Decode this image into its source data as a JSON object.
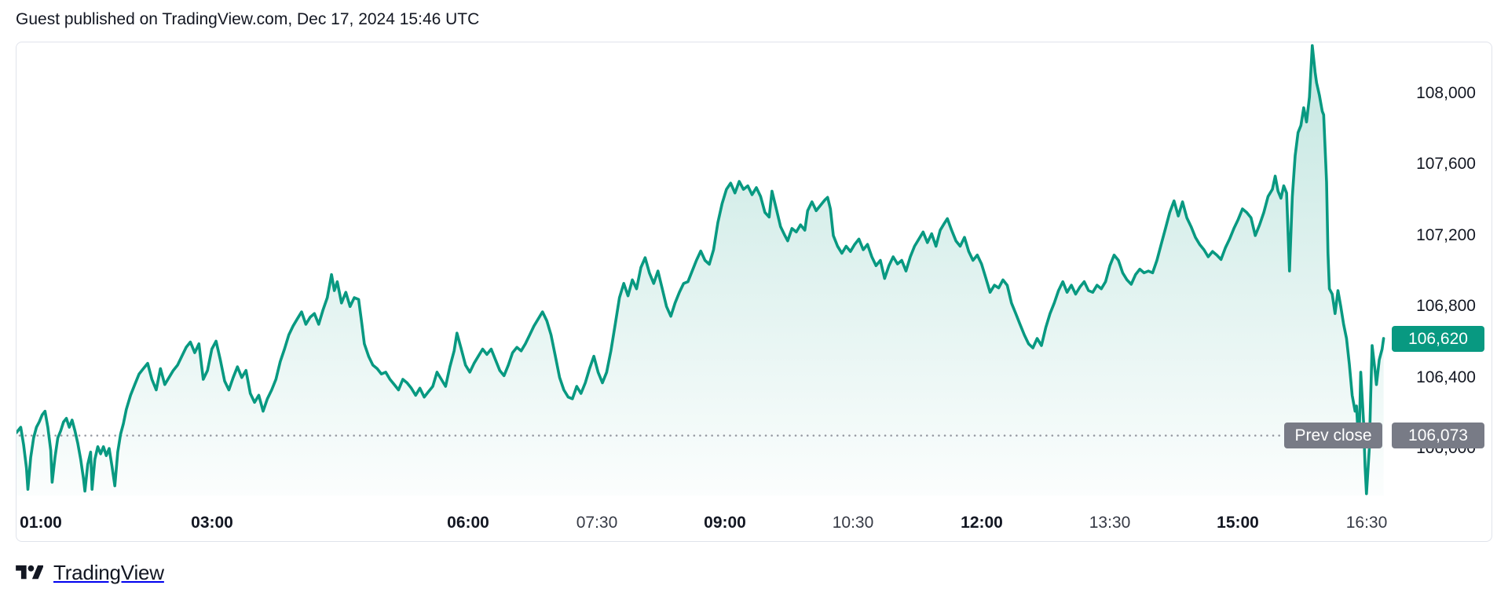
{
  "header": {
    "attribution": "Guest published on TradingView.com, Dec 17, 2024 15:46 UTC"
  },
  "chart": {
    "current_price_label": "106,620",
    "prev_close_label": "Prev close",
    "prev_close_value_label": "106,073"
  },
  "footer": {
    "brand": "TradingView",
    "logo_icon": "tradingview-logo"
  },
  "colors": {
    "accent": "#089981",
    "badge_gray": "#787b86",
    "dotted_line": "#9598a1",
    "axis_text": "#131722",
    "axis_text_regular": "#363a45",
    "border": "#e0e3eb"
  },
  "chart_data": {
    "type": "area",
    "title": "",
    "xlabel": "",
    "ylabel": "",
    "grid": false,
    "legend": "none",
    "x_unit": "minutes_since_midnight",
    "x_range_minutes": [
      43,
      1005
    ],
    "ylim": [
      105735,
      108288
    ],
    "current_price": 106620,
    "prev_close": 106073,
    "y_ticks": [
      {
        "price": 108000,
        "label": "108,000"
      },
      {
        "price": 107600,
        "label": "107,600"
      },
      {
        "price": 107200,
        "label": "107,200"
      },
      {
        "price": 106800,
        "label": "106,800"
      },
      {
        "price": 106400,
        "label": "106,400"
      },
      {
        "price": 106000,
        "label": "106,000"
      }
    ],
    "x_ticks": [
      {
        "minutes": 60,
        "label": "01:00",
        "bold": true
      },
      {
        "minutes": 180,
        "label": "03:00",
        "bold": true
      },
      {
        "minutes": 360,
        "label": "06:00",
        "bold": true
      },
      {
        "minutes": 450,
        "label": "07:30",
        "bold": false
      },
      {
        "minutes": 540,
        "label": "09:00",
        "bold": true
      },
      {
        "minutes": 630,
        "label": "10:30",
        "bold": false
      },
      {
        "minutes": 720,
        "label": "12:00",
        "bold": true
      },
      {
        "minutes": 810,
        "label": "13:30",
        "bold": false
      },
      {
        "minutes": 900,
        "label": "15:00",
        "bold": true
      },
      {
        "minutes": 990,
        "label": "16:30",
        "bold": false
      }
    ],
    "points": [
      [
        43,
        106090
      ],
      [
        46,
        106120
      ],
      [
        48,
        106020
      ],
      [
        50,
        105890
      ],
      [
        51,
        105770
      ],
      [
        53,
        105950
      ],
      [
        55,
        106060
      ],
      [
        57,
        106120
      ],
      [
        59,
        106150
      ],
      [
        61,
        106190
      ],
      [
        63,
        106210
      ],
      [
        65,
        106120
      ],
      [
        67,
        105990
      ],
      [
        68,
        105810
      ],
      [
        70,
        105950
      ],
      [
        72,
        106060
      ],
      [
        74,
        106100
      ],
      [
        76,
        106150
      ],
      [
        78,
        106170
      ],
      [
        80,
        106120
      ],
      [
        82,
        106160
      ],
      [
        84,
        106100
      ],
      [
        86,
        106030
      ],
      [
        88,
        105940
      ],
      [
        90,
        105830
      ],
      [
        91,
        105760
      ],
      [
        93,
        105910
      ],
      [
        95,
        105980
      ],
      [
        96,
        105770
      ],
      [
        98,
        105940
      ],
      [
        100,
        106010
      ],
      [
        102,
        105970
      ],
      [
        104,
        106010
      ],
      [
        106,
        105960
      ],
      [
        108,
        106000
      ],
      [
        110,
        105900
      ],
      [
        112,
        105790
      ],
      [
        114,
        105980
      ],
      [
        116,
        106080
      ],
      [
        118,
        106140
      ],
      [
        120,
        106220
      ],
      [
        123,
        106300
      ],
      [
        126,
        106360
      ],
      [
        129,
        106420
      ],
      [
        132,
        106450
      ],
      [
        135,
        106480
      ],
      [
        138,
        106390
      ],
      [
        141,
        106330
      ],
      [
        144,
        106450
      ],
      [
        147,
        106360
      ],
      [
        150,
        106400
      ],
      [
        153,
        106440
      ],
      [
        156,
        106470
      ],
      [
        159,
        106520
      ],
      [
        162,
        106570
      ],
      [
        165,
        106600
      ],
      [
        168,
        106540
      ],
      [
        171,
        106590
      ],
      [
        174,
        106390
      ],
      [
        177,
        106440
      ],
      [
        180,
        106560
      ],
      [
        183,
        106605
      ],
      [
        186,
        106500
      ],
      [
        189,
        106380
      ],
      [
        192,
        106330
      ],
      [
        195,
        106400
      ],
      [
        198,
        106460
      ],
      [
        201,
        106400
      ],
      [
        204,
        106440
      ],
      [
        207,
        106310
      ],
      [
        210,
        106260
      ],
      [
        213,
        106300
      ],
      [
        216,
        106210
      ],
      [
        219,
        106280
      ],
      [
        222,
        106330
      ],
      [
        225,
        106390
      ],
      [
        228,
        106490
      ],
      [
        231,
        106560
      ],
      [
        234,
        106640
      ],
      [
        237,
        106690
      ],
      [
        240,
        106730
      ],
      [
        243,
        106770
      ],
      [
        246,
        106700
      ],
      [
        249,
        106740
      ],
      [
        252,
        106760
      ],
      [
        255,
        106700
      ],
      [
        258,
        106780
      ],
      [
        261,
        106850
      ],
      [
        264,
        106980
      ],
      [
        266,
        106890
      ],
      [
        268,
        106940
      ],
      [
        271,
        106820
      ],
      [
        274,
        106880
      ],
      [
        277,
        106800
      ],
      [
        280,
        106850
      ],
      [
        283,
        106840
      ],
      [
        285,
        106720
      ],
      [
        287,
        106590
      ],
      [
        290,
        106520
      ],
      [
        293,
        106470
      ],
      [
        296,
        106450
      ],
      [
        299,
        106420
      ],
      [
        302,
        106430
      ],
      [
        305,
        106390
      ],
      [
        308,
        106360
      ],
      [
        311,
        106330
      ],
      [
        314,
        106390
      ],
      [
        317,
        106370
      ],
      [
        320,
        106340
      ],
      [
        323,
        106300
      ],
      [
        326,
        106340
      ],
      [
        329,
        106290
      ],
      [
        332,
        106320
      ],
      [
        335,
        106350
      ],
      [
        338,
        106430
      ],
      [
        341,
        106390
      ],
      [
        344,
        106350
      ],
      [
        347,
        106460
      ],
      [
        350,
        106550
      ],
      [
        352,
        106650
      ],
      [
        355,
        106560
      ],
      [
        358,
        106470
      ],
      [
        361,
        106430
      ],
      [
        364,
        106480
      ],
      [
        367,
        106520
      ],
      [
        370,
        106560
      ],
      [
        373,
        106530
      ],
      [
        376,
        106560
      ],
      [
        379,
        106500
      ],
      [
        382,
        106440
      ],
      [
        385,
        106410
      ],
      [
        388,
        106470
      ],
      [
        391,
        106540
      ],
      [
        394,
        106570
      ],
      [
        397,
        106550
      ],
      [
        400,
        106590
      ],
      [
        403,
        106640
      ],
      [
        406,
        106690
      ],
      [
        409,
        106730
      ],
      [
        412,
        106770
      ],
      [
        415,
        106720
      ],
      [
        418,
        106640
      ],
      [
        421,
        106520
      ],
      [
        424,
        106400
      ],
      [
        427,
        106330
      ],
      [
        430,
        106290
      ],
      [
        433,
        106280
      ],
      [
        436,
        106350
      ],
      [
        439,
        106310
      ],
      [
        442,
        106370
      ],
      [
        445,
        106450
      ],
      [
        448,
        106520
      ],
      [
        451,
        106430
      ],
      [
        454,
        106370
      ],
      [
        457,
        106430
      ],
      [
        460,
        106550
      ],
      [
        463,
        106700
      ],
      [
        466,
        106850
      ],
      [
        469,
        106930
      ],
      [
        472,
        106860
      ],
      [
        475,
        106950
      ],
      [
        478,
        106900
      ],
      [
        481,
        107020
      ],
      [
        484,
        107075
      ],
      [
        487,
        106990
      ],
      [
        490,
        106930
      ],
      [
        493,
        107000
      ],
      [
        496,
        106900
      ],
      [
        499,
        106800
      ],
      [
        502,
        106745
      ],
      [
        505,
        106820
      ],
      [
        508,
        106880
      ],
      [
        511,
        106930
      ],
      [
        514,
        106940
      ],
      [
        517,
        107000
      ],
      [
        520,
        107060
      ],
      [
        523,
        107113
      ],
      [
        526,
        107060
      ],
      [
        529,
        107038
      ],
      [
        532,
        107120
      ],
      [
        535,
        107273
      ],
      [
        538,
        107380
      ],
      [
        541,
        107460
      ],
      [
        544,
        107495
      ],
      [
        547,
        107440
      ],
      [
        550,
        107505
      ],
      [
        553,
        107460
      ],
      [
        556,
        107480
      ],
      [
        559,
        107430
      ],
      [
        562,
        107470
      ],
      [
        565,
        107420
      ],
      [
        568,
        107330
      ],
      [
        571,
        107304
      ],
      [
        573,
        107450
      ],
      [
        576,
        107350
      ],
      [
        579,
        107250
      ],
      [
        582,
        107200
      ],
      [
        584,
        107170
      ],
      [
        587,
        107240
      ],
      [
        590,
        107220
      ],
      [
        593,
        107260
      ],
      [
        596,
        107230
      ],
      [
        598,
        107340
      ],
      [
        601,
        107390
      ],
      [
        604,
        107340
      ],
      [
        607,
        107370
      ],
      [
        610,
        107400
      ],
      [
        612,
        107415
      ],
      [
        614,
        107350
      ],
      [
        616,
        107200
      ],
      [
        619,
        107140
      ],
      [
        622,
        107100
      ],
      [
        625,
        107140
      ],
      [
        628,
        107110
      ],
      [
        631,
        107150
      ],
      [
        634,
        107180
      ],
      [
        637,
        107120
      ],
      [
        640,
        107150
      ],
      [
        643,
        107080
      ],
      [
        646,
        107030
      ],
      [
        649,
        107060
      ],
      [
        652,
        106958
      ],
      [
        655,
        107030
      ],
      [
        658,
        107080
      ],
      [
        661,
        107040
      ],
      [
        664,
        107060
      ],
      [
        667,
        107000
      ],
      [
        670,
        107080
      ],
      [
        673,
        107140
      ],
      [
        676,
        107180
      ],
      [
        679,
        107220
      ],
      [
        682,
        107160
      ],
      [
        685,
        107210
      ],
      [
        688,
        107140
      ],
      [
        691,
        107230
      ],
      [
        694,
        107270
      ],
      [
        696,
        107295
      ],
      [
        699,
        107230
      ],
      [
        702,
        107170
      ],
      [
        705,
        107140
      ],
      [
        708,
        107190
      ],
      [
        711,
        107110
      ],
      [
        714,
        107060
      ],
      [
        717,
        107090
      ],
      [
        720,
        107040
      ],
      [
        723,
        106960
      ],
      [
        726,
        106880
      ],
      [
        729,
        106920
      ],
      [
        732,
        106905
      ],
      [
        735,
        106950
      ],
      [
        738,
        106920
      ],
      [
        741,
        106820
      ],
      [
        744,
        106760
      ],
      [
        747,
        106700
      ],
      [
        750,
        106640
      ],
      [
        753,
        106590
      ],
      [
        756,
        106567
      ],
      [
        759,
        106620
      ],
      [
        762,
        106580
      ],
      [
        765,
        106680
      ],
      [
        768,
        106760
      ],
      [
        771,
        106820
      ],
      [
        774,
        106890
      ],
      [
        777,
        106940
      ],
      [
        780,
        106880
      ],
      [
        783,
        106920
      ],
      [
        786,
        106870
      ],
      [
        789,
        106910
      ],
      [
        792,
        106940
      ],
      [
        795,
        106890
      ],
      [
        798,
        106880
      ],
      [
        801,
        106920
      ],
      [
        804,
        106900
      ],
      [
        807,
        106940
      ],
      [
        810,
        107030
      ],
      [
        813,
        107090
      ],
      [
        816,
        107060
      ],
      [
        819,
        106990
      ],
      [
        822,
        106950
      ],
      [
        825,
        106925
      ],
      [
        828,
        106980
      ],
      [
        831,
        107010
      ],
      [
        834,
        106990
      ],
      [
        837,
        107000
      ],
      [
        840,
        106990
      ],
      [
        843,
        107060
      ],
      [
        846,
        107150
      ],
      [
        849,
        107240
      ],
      [
        852,
        107330
      ],
      [
        855,
        107395
      ],
      [
        858,
        107310
      ],
      [
        861,
        107390
      ],
      [
        864,
        107300
      ],
      [
        867,
        107250
      ],
      [
        870,
        107190
      ],
      [
        873,
        107150
      ],
      [
        876,
        107120
      ],
      [
        879,
        107080
      ],
      [
        882,
        107110
      ],
      [
        885,
        107090
      ],
      [
        888,
        107065
      ],
      [
        891,
        107130
      ],
      [
        894,
        107180
      ],
      [
        897,
        107240
      ],
      [
        900,
        107290
      ],
      [
        903,
        107350
      ],
      [
        906,
        107330
      ],
      [
        909,
        107300
      ],
      [
        912,
        107200
      ],
      [
        915,
        107260
      ],
      [
        918,
        107330
      ],
      [
        921,
        107420
      ],
      [
        924,
        107460
      ],
      [
        926,
        107535
      ],
      [
        928,
        107450
      ],
      [
        930,
        107410
      ],
      [
        932,
        107480
      ],
      [
        934,
        107440
      ],
      [
        936,
        107000
      ],
      [
        938,
        107420
      ],
      [
        940,
        107650
      ],
      [
        942,
        107780
      ],
      [
        944,
        107820
      ],
      [
        946,
        107920
      ],
      [
        948,
        107840
      ],
      [
        950,
        107980
      ],
      [
        952,
        108270
      ],
      [
        954,
        108120
      ],
      [
        955,
        108060
      ],
      [
        957,
        107990
      ],
      [
        959,
        107900
      ],
      [
        960,
        107880
      ],
      [
        962,
        107500
      ],
      [
        963,
        107100
      ],
      [
        964,
        106900
      ],
      [
        966,
        106870
      ],
      [
        968,
        106760
      ],
      [
        970,
        106890
      ],
      [
        972,
        106800
      ],
      [
        974,
        106700
      ],
      [
        976,
        106620
      ],
      [
        978,
        106475
      ],
      [
        980,
        106300
      ],
      [
        982,
        106210
      ],
      [
        983,
        106240
      ],
      [
        984,
        106100
      ],
      [
        985,
        106095
      ],
      [
        986,
        106430
      ],
      [
        988,
        106150
      ],
      [
        989,
        105900
      ],
      [
        990,
        105745
      ],
      [
        992,
        106000
      ],
      [
        993,
        106300
      ],
      [
        994,
        106580
      ],
      [
        996,
        106440
      ],
      [
        997,
        106360
      ],
      [
        999,
        106500
      ],
      [
        1001,
        106560
      ],
      [
        1002,
        106620
      ]
    ]
  }
}
